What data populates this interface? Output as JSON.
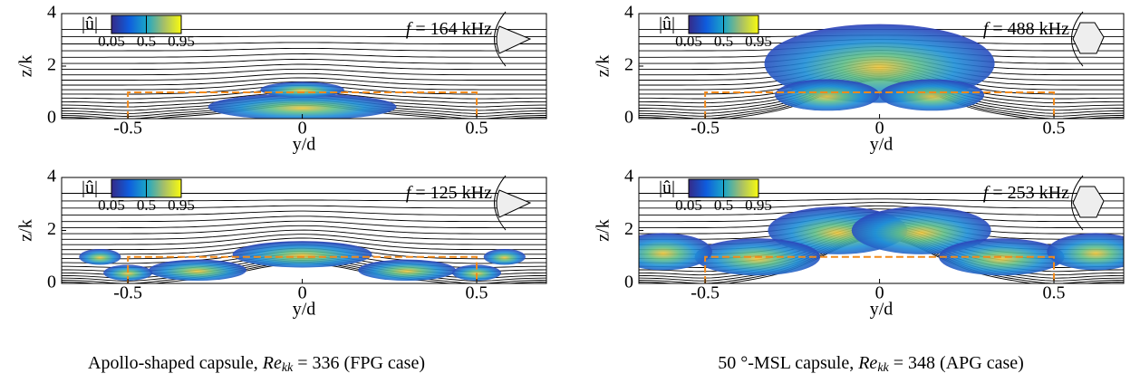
{
  "chart_data": [
    {
      "type": "contour",
      "xlabel": "y/d",
      "ylabel": "z/k",
      "xlim": [
        -0.69,
        0.7
      ],
      "ylim": [
        0,
        4
      ],
      "xticks": [
        -0.5,
        0,
        0.5
      ],
      "yticks": [
        0,
        2,
        4
      ],
      "annotation": [
        "f",
        " = 164 kHz"
      ],
      "colorbar": {
        "label": "|û|",
        "lim": [
          0.05,
          0.95
        ],
        "ticks": [
          0.05,
          0.5,
          0.95
        ]
      }
    },
    {
      "type": "contour",
      "xlabel": "y/d",
      "ylabel": "z/k",
      "xlim": [
        -0.69,
        0.7
      ],
      "ylim": [
        0,
        4
      ],
      "xticks": [
        -0.5,
        0,
        0.5
      ],
      "yticks": [
        0,
        2,
        4
      ],
      "annotation": [
        "f",
        " = 488 kHz"
      ],
      "colorbar": {
        "label": "|û|",
        "lim": [
          0.05,
          0.95
        ],
        "ticks": [
          0.05,
          0.5,
          0.95
        ]
      }
    },
    {
      "type": "contour",
      "xlabel": "y/d",
      "ylabel": "z/k",
      "xlim": [
        -0.69,
        0.7
      ],
      "ylim": [
        0,
        4
      ],
      "xticks": [
        -0.5,
        0,
        0.5
      ],
      "yticks": [
        0,
        2,
        4
      ],
      "annotation": [
        "f",
        " = 125 kHz"
      ],
      "colorbar": {
        "label": "|û|",
        "lim": [
          0.05,
          0.95
        ],
        "ticks": [
          0.05,
          0.5,
          0.95
        ]
      }
    },
    {
      "type": "contour",
      "xlabel": "y/d",
      "ylabel": "z/k",
      "xlim": [
        -0.69,
        0.7
      ],
      "ylim": [
        0,
        4
      ],
      "xticks": [
        -0.5,
        0,
        0.5
      ],
      "yticks": [
        0,
        2,
        4
      ],
      "annotation": [
        "f",
        " = 253 kHz"
      ],
      "colorbar": {
        "label": "|û|",
        "lim": [
          0.05,
          0.95
        ],
        "ticks": [
          0.05,
          0.5,
          0.95
        ]
      }
    }
  ],
  "captions": [
    [
      "Apollo-shaped capsule, ",
      "Re",
      "kk",
      " = 336 (FPG case)"
    ],
    [
      "50 °-MSL capsule, ",
      "Re",
      "kk",
      " = 348 (APG case)"
    ]
  ]
}
